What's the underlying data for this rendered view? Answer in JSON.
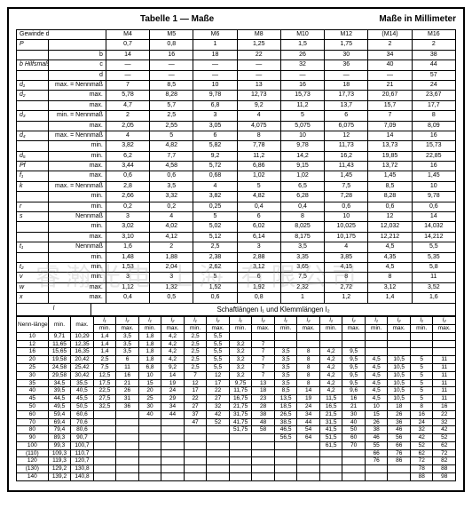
{
  "header": {
    "title": "Tabelle 1 — Maße",
    "units": "Maße in Millimeter"
  },
  "top": {
    "gewinde": "Gewinde d",
    "sizes": [
      "M4",
      "M5",
      "M6",
      "M8",
      "M10",
      "M12",
      "(M14)",
      "M16"
    ],
    "rows": [
      {
        "lab": "P",
        "sub": "",
        "v": [
          "0,7",
          "0,8",
          "1",
          "1,25",
          "1,5",
          "1,75",
          "2",
          "2"
        ]
      },
      {
        "lab": "",
        "sub": "b",
        "v": [
          "14",
          "16",
          "18",
          "22",
          "26",
          "30",
          "34",
          "38"
        ]
      },
      {
        "lab": "b Hilfsmaß",
        "sub": "c",
        "v": [
          "—",
          "—",
          "—",
          "—",
          "32",
          "36",
          "40",
          "44"
        ]
      },
      {
        "lab": "",
        "sub": "d",
        "v": [
          "—",
          "—",
          "—",
          "—",
          "—",
          "—",
          "—",
          "57"
        ]
      },
      {
        "lab": "d₁",
        "sub": "max. = Nennmaß",
        "v": [
          "7",
          "8,5",
          "10",
          "13",
          "16",
          "18",
          "21",
          "24"
        ]
      },
      {
        "lab": "d₂",
        "sub": "max.",
        "v": [
          "5,78",
          "8,28",
          "9,78",
          "12,73",
          "15,73",
          "17,73",
          "20,67",
          "23,67"
        ]
      },
      {
        "lab": "",
        "sub": "max.",
        "v": [
          "4,7",
          "5,7",
          "6,8",
          "9,2",
          "11,2",
          "13,7",
          "15,7",
          "17,7"
        ]
      },
      {
        "lab": "d₃",
        "sub": "min. = Nennmaß",
        "v": [
          "2",
          "2,5",
          "3",
          "4",
          "5",
          "6",
          "7",
          "8"
        ]
      },
      {
        "lab": "",
        "sub": "max.",
        "v": [
          "2,05",
          "2,55",
          "3,05",
          "4,075",
          "5,075",
          "6,075",
          "7,09",
          "8,09"
        ]
      },
      {
        "lab": "d₄",
        "sub": "max. = Nennmaß",
        "v": [
          "4",
          "5",
          "6",
          "8",
          "10",
          "12",
          "14",
          "16"
        ]
      },
      {
        "lab": "",
        "sub": "min.",
        "v": [
          "3,82",
          "4,82",
          "5,82",
          "7,78",
          "9,78",
          "11,73",
          "13,73",
          "15,73"
        ]
      },
      {
        "lab": "d₅",
        "sub": "min.",
        "v": [
          "6,2",
          "7,7",
          "9,2",
          "11,2",
          "14,2",
          "16,2",
          "19,85",
          "22,85"
        ]
      },
      {
        "lab": "Pf",
        "sub": "max.",
        "v": [
          "3,44",
          "4,58",
          "5,72",
          "6,86",
          "9,15",
          "11,43",
          "13,72",
          "16"
        ]
      },
      {
        "lab": "f₁",
        "sub": "max.",
        "v": [
          "0,6",
          "0,6",
          "0,68",
          "1,02",
          "1,02",
          "1,45",
          "1,45",
          "1,45"
        ]
      },
      {
        "lab": "k",
        "sub": "max. = Nennmaß",
        "v": [
          "2,8",
          "3,5",
          "4",
          "5",
          "6,5",
          "7,5",
          "8,5",
          "10"
        ]
      },
      {
        "lab": "",
        "sub": "min.",
        "v": [
          "2,66",
          "3,32",
          "3,82",
          "4,82",
          "6,28",
          "7,28",
          "8,28",
          "9,78"
        ]
      },
      {
        "lab": "r",
        "sub": "min.",
        "v": [
          "0,2",
          "0,2",
          "0,25",
          "0,4",
          "0,4",
          "0,6",
          "0,6",
          "0,6"
        ]
      },
      {
        "lab": "s",
        "sub": "Nennmaß",
        "v": [
          "3",
          "4",
          "5",
          "6",
          "8",
          "10",
          "12",
          "14"
        ]
      },
      {
        "lab": "",
        "sub": "min.",
        "v": [
          "3,02",
          "4,02",
          "5,02",
          "6,02",
          "8,025",
          "10,025",
          "12,032",
          "14,032"
        ]
      },
      {
        "lab": "",
        "sub": "max.",
        "v": [
          "3,10",
          "4,12",
          "5,12",
          "6,14",
          "8,175",
          "10,175",
          "12,212",
          "14,212"
        ]
      },
      {
        "lab": "t₁",
        "sub": "Nennmaß",
        "v": [
          "1,6",
          "2",
          "2,5",
          "3",
          "3,5",
          "4",
          "4,5",
          "5,5"
        ]
      },
      {
        "lab": "",
        "sub": "min.",
        "v": [
          "1,48",
          "1,88",
          "2,38",
          "2,88",
          "3,35",
          "3,85",
          "4,35",
          "5,35"
        ]
      },
      {
        "lab": "t₂",
        "sub": "min.",
        "v": [
          "1,53",
          "2,04",
          "2,62",
          "3,12",
          "3,65",
          "4,15",
          "4,5",
          "5,8"
        ]
      },
      {
        "lab": "v",
        "sub": "min.",
        "v": [
          "3",
          "3",
          "5",
          "6",
          "7,5",
          "8",
          "8",
          "11"
        ]
      },
      {
        "lab": "w",
        "sub": "max.",
        "v": [
          "1,12",
          "1,32",
          "1,52",
          "1,92",
          "2,32",
          "2,72",
          "3,12",
          "3,52"
        ]
      },
      {
        "lab": "x",
        "sub": "max.",
        "v": [
          "0,4",
          "0,5",
          "0,6",
          "0,8",
          "1",
          "1,2",
          "1,4",
          "1,6"
        ]
      }
    ]
  },
  "bottom": {
    "title": "Schaftlängen l₁ und Klemmlängen l₂",
    "nenn": "Nenn-länge",
    "subcols": [
      "min.",
      "max."
    ],
    "pair": [
      "l₁",
      "l₂"
    ],
    "rows": [
      {
        "l": "10",
        "mn": "9,71",
        "mx": "10,29",
        "c": [
          [
            "1,4",
            "3,5"
          ],
          [
            "1,8",
            "4,2"
          ],
          [
            "2,5",
            "5,5"
          ],
          [
            "",
            ""
          ],
          [
            "",
            ""
          ],
          [
            "",
            ""
          ],
          [
            "",
            ""
          ],
          [
            "",
            ""
          ]
        ]
      },
      {
        "l": "12",
        "mn": "11,65",
        "mx": "12,35",
        "c": [
          [
            "1,4",
            "3,5"
          ],
          [
            "1,8",
            "4,2"
          ],
          [
            "2,5",
            "5,5"
          ],
          [
            "3,2",
            "7"
          ],
          [
            "",
            ""
          ],
          [
            "",
            ""
          ],
          [
            "",
            ""
          ],
          [
            "",
            ""
          ]
        ]
      },
      {
        "l": "16",
        "mn": "15,65",
        "mx": "16,35",
        "c": [
          [
            "1,4",
            "3,5"
          ],
          [
            "1,8",
            "4,2"
          ],
          [
            "2,5",
            "5,5"
          ],
          [
            "3,2",
            "7"
          ],
          [
            "3,5",
            "8"
          ],
          [
            "4,2",
            "9,5"
          ],
          [
            "",
            ""
          ],
          [
            "",
            ""
          ]
        ]
      },
      {
        "l": "20",
        "mn": "19,58",
        "mx": "20,42",
        "c": [
          [
            "2,5",
            "6"
          ],
          [
            "1,8",
            "4,2"
          ],
          [
            "2,5",
            "5,5"
          ],
          [
            "3,2",
            "7"
          ],
          [
            "3,5",
            "8"
          ],
          [
            "4,2",
            "9,5"
          ],
          [
            "4,5",
            "10,5"
          ],
          [
            "5",
            "11"
          ]
        ]
      },
      {
        "l": "25",
        "mn": "24,58",
        "mx": "25,42",
        "c": [
          [
            "7,5",
            "11"
          ],
          [
            "6,8",
            "9,2"
          ],
          [
            "2,5",
            "5,5"
          ],
          [
            "3,2",
            "7"
          ],
          [
            "3,5",
            "8"
          ],
          [
            "4,2",
            "9,5"
          ],
          [
            "4,5",
            "10,5"
          ],
          [
            "5",
            "11"
          ]
        ]
      },
      {
        "l": "30",
        "mn": "29,58",
        "mx": "30,42",
        "c": [
          [
            "12,5",
            "16"
          ],
          [
            "10",
            "14"
          ],
          [
            "7",
            "12"
          ],
          [
            "3,2",
            "7"
          ],
          [
            "3,5",
            "8"
          ],
          [
            "4,2",
            "9,5"
          ],
          [
            "4,5",
            "10,5"
          ],
          [
            "5",
            "11"
          ]
        ]
      },
      {
        "l": "35",
        "mn": "34,5",
        "mx": "35,5",
        "c": [
          [
            "17,5",
            "21"
          ],
          [
            "15",
            "19"
          ],
          [
            "12",
            "17"
          ],
          [
            "9,75",
            "13"
          ],
          [
            "3,5",
            "8"
          ],
          [
            "4,2",
            "9,5"
          ],
          [
            "4,5",
            "10,5"
          ],
          [
            "5",
            "11"
          ]
        ]
      },
      {
        "l": "40",
        "mn": "39,5",
        "mx": "40,5",
        "c": [
          [
            "22,5",
            "26"
          ],
          [
            "20",
            "24"
          ],
          [
            "17",
            "22"
          ],
          [
            "11,75",
            "18"
          ],
          [
            "8,5",
            "14"
          ],
          [
            "4,2",
            "9,6"
          ],
          [
            "4,5",
            "10,5"
          ],
          [
            "5",
            "11"
          ]
        ]
      },
      {
        "l": "45",
        "mn": "44,5",
        "mx": "45,5",
        "c": [
          [
            "27,5",
            "31"
          ],
          [
            "25",
            "29"
          ],
          [
            "22",
            "27"
          ],
          [
            "16,75",
            "23"
          ],
          [
            "13,5",
            "19"
          ],
          [
            "11,5",
            "16"
          ],
          [
            "4,5",
            "10,5"
          ],
          [
            "5",
            "11"
          ]
        ]
      },
      {
        "l": "50",
        "mn": "49,5",
        "mx": "50,5",
        "c": [
          [
            "32,5",
            "36"
          ],
          [
            "30",
            "34"
          ],
          [
            "27",
            "32"
          ],
          [
            "21,75",
            "28"
          ],
          [
            "18,5",
            "24"
          ],
          [
            "16,5",
            "21"
          ],
          [
            "10",
            "18"
          ],
          [
            "8",
            "16"
          ]
        ]
      },
      {
        "l": "60",
        "mn": "59,4",
        "mx": "60,6",
        "c": [
          [
            "",
            ""
          ],
          [
            "40",
            "44"
          ],
          [
            "37",
            "42"
          ],
          [
            "31,75",
            "38"
          ],
          [
            "26,5",
            "34"
          ],
          [
            "21,5",
            "30"
          ],
          [
            "15",
            "26"
          ],
          [
            "16",
            "22"
          ]
        ]
      },
      {
        "l": "70",
        "mn": "69,4",
        "mx": "70,6",
        "c": [
          [
            "",
            ""
          ],
          [
            "",
            ""
          ],
          [
            "47",
            "52"
          ],
          [
            "41,75",
            "48"
          ],
          [
            "38,5",
            "44"
          ],
          [
            "31,5",
            "40"
          ],
          [
            "26",
            "36"
          ],
          [
            "24",
            "32"
          ]
        ]
      },
      {
        "l": "80",
        "mn": "79,4",
        "mx": "80,6",
        "c": [
          [
            "",
            ""
          ],
          [
            "",
            ""
          ],
          [
            "",
            ""
          ],
          [
            "51,75",
            "58"
          ],
          [
            "46,5",
            "54"
          ],
          [
            "41,5",
            "50"
          ],
          [
            "38",
            "46"
          ],
          [
            "32",
            "42"
          ]
        ]
      },
      {
        "l": "90",
        "mn": "89,3",
        "mx": "90,7",
        "c": [
          [
            "",
            ""
          ],
          [
            "",
            ""
          ],
          [
            "",
            ""
          ],
          [
            "",
            ""
          ],
          [
            "56,5",
            "64"
          ],
          [
            "51,5",
            "60"
          ],
          [
            "46",
            "56"
          ],
          [
            "42",
            "52"
          ]
        ]
      },
      {
        "l": "100",
        "mn": "99,3",
        "mx": "100,7",
        "c": [
          [
            "",
            ""
          ],
          [
            "",
            ""
          ],
          [
            "",
            ""
          ],
          [
            "",
            ""
          ],
          [
            "",
            ""
          ],
          [
            "61,5",
            "70"
          ],
          [
            "55",
            "66"
          ],
          [
            "52",
            "62"
          ]
        ]
      },
      {
        "l": "(110)",
        "mn": "109,3",
        "mx": "110,7",
        "c": [
          [
            "",
            ""
          ],
          [
            "",
            ""
          ],
          [
            "",
            ""
          ],
          [
            "",
            ""
          ],
          [
            "",
            ""
          ],
          [
            "",
            ""
          ],
          [
            "66",
            "76"
          ],
          [
            "62",
            "72"
          ]
        ]
      },
      {
        "l": "120",
        "mn": "119,3",
        "mx": "120,7",
        "c": [
          [
            "",
            ""
          ],
          [
            "",
            ""
          ],
          [
            "",
            ""
          ],
          [
            "",
            ""
          ],
          [
            "",
            ""
          ],
          [
            "",
            ""
          ],
          [
            "76",
            "86"
          ],
          [
            "72",
            "82"
          ]
        ]
      },
      {
        "l": "(130)",
        "mn": "129,2",
        "mx": "130,8",
        "c": [
          [
            "",
            ""
          ],
          [
            "",
            ""
          ],
          [
            "",
            ""
          ],
          [
            "",
            ""
          ],
          [
            "",
            ""
          ],
          [
            "",
            ""
          ],
          [
            "",
            ""
          ],
          [
            "78",
            "88"
          ]
        ]
      },
      {
        "l": "140",
        "mn": "139,2",
        "mx": "140,8",
        "c": [
          [
            "",
            ""
          ],
          [
            "",
            ""
          ],
          [
            "",
            ""
          ],
          [
            "",
            ""
          ],
          [
            "",
            ""
          ],
          [
            "",
            ""
          ],
          [
            "",
            ""
          ],
          [
            "88",
            "98"
          ]
        ]
      }
    ]
  }
}
